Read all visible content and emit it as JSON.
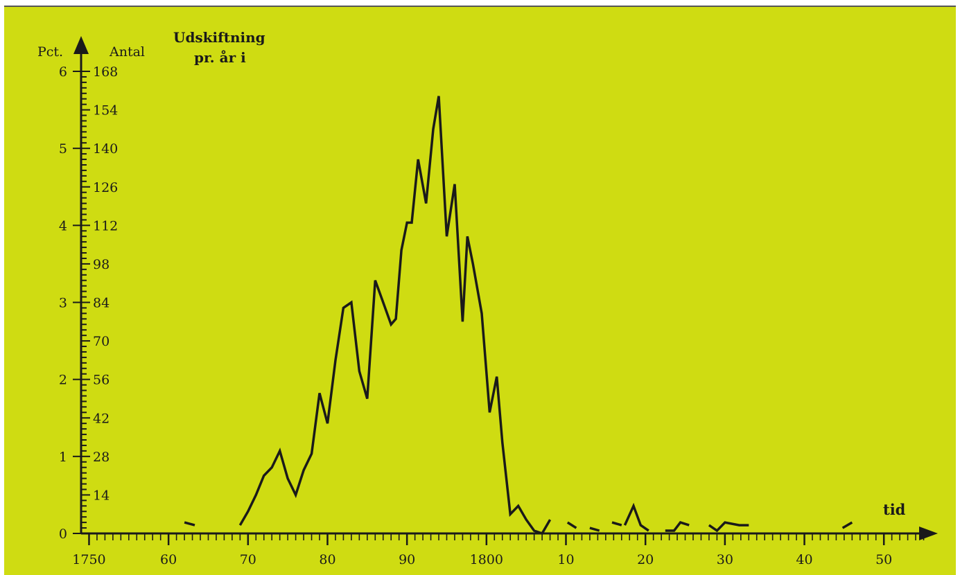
{
  "chart_data": {
    "type": "line",
    "title_lines": [
      "Udskiftning",
      "pr. år i"
    ],
    "ylabel_left": "Pct.",
    "ylabel_right": "Antal",
    "xlabel": "tid",
    "x_tick_labels": [
      {
        "x": 1750,
        "label": "1750"
      },
      {
        "x": 1760,
        "label": "60"
      },
      {
        "x": 1770,
        "label": "70"
      },
      {
        "x": 1780,
        "label": "80"
      },
      {
        "x": 1790,
        "label": "90"
      },
      {
        "x": 1800,
        "label": "1800"
      },
      {
        "x": 1810,
        "label": "10"
      },
      {
        "x": 1820,
        "label": "20"
      },
      {
        "x": 1830,
        "label": "30"
      },
      {
        "x": 1840,
        "label": "40"
      },
      {
        "x": 1850,
        "label": "50"
      }
    ],
    "pct_ticks": [
      "0",
      "1",
      "2",
      "3",
      "4",
      "5",
      "6"
    ],
    "antal_ticks": [
      "14",
      "28",
      "42",
      "56",
      "70",
      "84",
      "98",
      "112",
      "126",
      "140",
      "154",
      "168"
    ],
    "xlim": [
      1749,
      1856
    ],
    "ylim_antal": [
      0,
      168
    ],
    "segments": [
      [
        [
          1762,
          4
        ],
        [
          1763.3,
          3
        ]
      ],
      [
        [
          1769,
          3
        ],
        [
          1770,
          8
        ],
        [
          1771,
          14
        ],
        [
          1772,
          21
        ],
        [
          1773,
          24
        ],
        [
          1774,
          30
        ],
        [
          1775,
          20
        ],
        [
          1776,
          14
        ],
        [
          1777,
          23
        ],
        [
          1778,
          29
        ],
        [
          1779,
          51
        ],
        [
          1780,
          40
        ],
        [
          1781,
          63
        ],
        [
          1782,
          82
        ],
        [
          1783,
          84
        ],
        [
          1784,
          59
        ],
        [
          1785,
          49
        ],
        [
          1786,
          92
        ],
        [
          1787,
          84
        ],
        [
          1788,
          76
        ],
        [
          1788.6,
          78
        ],
        [
          1789.3,
          103
        ],
        [
          1790,
          113
        ],
        [
          1790.6,
          113
        ],
        [
          1791.4,
          136
        ],
        [
          1792.4,
          120
        ],
        [
          1793.3,
          147
        ],
        [
          1794,
          159
        ],
        [
          1795,
          108
        ],
        [
          1796,
          127
        ],
        [
          1797,
          77
        ],
        [
          1797.6,
          108
        ],
        [
          1798.3,
          98
        ],
        [
          1799.4,
          80
        ],
        [
          1800.4,
          44
        ],
        [
          1801.3,
          57
        ],
        [
          1802,
          33
        ],
        [
          1803,
          7
        ],
        [
          1804,
          10
        ],
        [
          1805,
          5
        ],
        [
          1806,
          1
        ],
        [
          1807,
          0
        ],
        [
          1808,
          5
        ]
      ]
    ],
    "dashes": [
      [
        [
          1810.2,
          4
        ],
        [
          1811.3,
          2
        ]
      ],
      [
        [
          1813,
          2
        ],
        [
          1814.2,
          1
        ]
      ],
      [
        [
          1815.8,
          4
        ],
        [
          1817,
          3
        ]
      ],
      [
        [
          1817.4,
          3
        ],
        [
          1818.5,
          10
        ],
        [
          1819.4,
          3
        ],
        [
          1820.4,
          1
        ]
      ],
      [
        [
          1822.5,
          1
        ],
        [
          1823.6,
          1
        ],
        [
          1824.4,
          4
        ],
        [
          1825.5,
          3
        ]
      ],
      [
        [
          1828,
          3
        ],
        [
          1829,
          1
        ],
        [
          1830,
          4
        ],
        [
          1831.8,
          3
        ],
        [
          1833,
          3
        ]
      ],
      [
        [
          1844.8,
          2
        ],
        [
          1846,
          4
        ]
      ]
    ]
  }
}
